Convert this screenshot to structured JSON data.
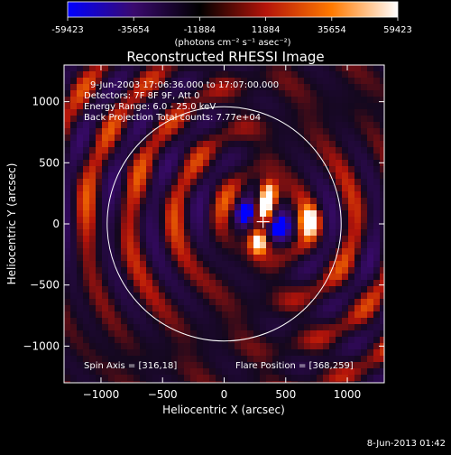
{
  "chart_data": {
    "type": "heatmap",
    "title": "Reconstructed RHESSI Image",
    "xlabel": "Heliocentric X (arcsec)",
    "ylabel": "Heliocentric Y (arcsec)",
    "xlim": [
      -1300,
      1300
    ],
    "ylim": [
      -1300,
      1300
    ],
    "x_ticks": [
      -1000,
      -500,
      0,
      500,
      1000
    ],
    "y_ticks": [
      -1000,
      -500,
      0,
      500,
      1000
    ],
    "colorbar": {
      "ticks": [
        "-59423",
        "-35654",
        "-11884",
        "11884",
        "35654",
        "59423"
      ],
      "range": [
        -59423,
        59423
      ],
      "unit_label": "(photons cm⁻² s⁻¹ asec⁻²)",
      "colors": [
        "#0000ff",
        "#3a0a6e",
        "#000000",
        "#b4140a",
        "#ff7a00",
        "#ffffff"
      ]
    },
    "annotations": [
      "9-Jun-2003 17:06:36.000 to 17:07:00.000",
      "Detectors: 7F 8F 9F, Att 0",
      "Energy Range: 6.0 - 25.0 keV",
      "Back Projection     Total counts: 7.77e+04"
    ],
    "spin_axis": "Spin Axis = [316,18]",
    "flare_position": "Flare Position = [368,259]",
    "solar_limb": {
      "center": [
        0,
        0
      ],
      "radius": 950
    },
    "crosshair": [
      316,
      18
    ],
    "sources": [
      {
        "x": 360,
        "y": 250,
        "sign": 1
      },
      {
        "x": 330,
        "y": 130,
        "sign": 1
      },
      {
        "x": 280,
        "y": -150,
        "sign": 1
      },
      {
        "x": 690,
        "y": 20,
        "sign": 1
      },
      {
        "x": 170,
        "y": 80,
        "sign": -1
      },
      {
        "x": 440,
        "y": -20,
        "sign": -1
      }
    ],
    "grid": false
  },
  "timestamp": "8-Jun-2013 01:42"
}
